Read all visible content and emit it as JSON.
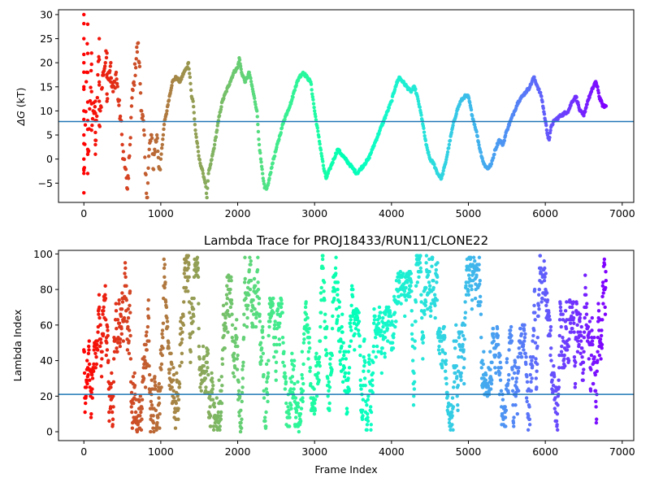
{
  "chart_data": [
    {
      "type": "scatter",
      "title": "",
      "xlabel": "",
      "ylabel": "ΔG (kT)",
      "ylabel_italic_part": "ΔG",
      "ylabel_rest": " (kT)",
      "xlim": [
        -330,
        7150
      ],
      "ylim": [
        -9,
        31
      ],
      "xticks": [
        0,
        1000,
        2000,
        3000,
        4000,
        5000,
        6000,
        7000
      ],
      "yticks": [
        -5,
        0,
        5,
        10,
        15,
        20,
        25,
        30
      ],
      "hline": 7.8,
      "hline_color": "#1f77b4",
      "colormap": "rainbow (red at frame 0 → violet at last frame)",
      "marker_color_start": "#ff0000",
      "marker_color_end": "#7f00ff",
      "grid": false,
      "legend": "none",
      "series_points": [
        [
          0,
          30
        ],
        [
          0,
          25
        ],
        [
          0,
          20
        ],
        [
          0,
          15
        ],
        [
          0,
          10
        ],
        [
          0,
          5
        ],
        [
          0,
          0
        ],
        [
          0,
          -2
        ],
        [
          0,
          -7
        ],
        [
          50,
          28
        ],
        [
          50,
          18
        ],
        [
          50,
          8
        ],
        [
          50,
          2
        ],
        [
          50,
          -3
        ],
        [
          100,
          22
        ],
        [
          100,
          14
        ],
        [
          100,
          6
        ],
        [
          120,
          10
        ],
        [
          150,
          12
        ],
        [
          150,
          8
        ],
        [
          150,
          3
        ],
        [
          150,
          1
        ],
        [
          200,
          25
        ],
        [
          200,
          16
        ],
        [
          200,
          12
        ],
        [
          200,
          7
        ],
        [
          220,
          11
        ],
        [
          250,
          18
        ],
        [
          280,
          20
        ],
        [
          300,
          22
        ],
        [
          300,
          17
        ],
        [
          300,
          12
        ],
        [
          320,
          18
        ],
        [
          350,
          20
        ],
        [
          350,
          16
        ],
        [
          380,
          14
        ],
        [
          400,
          16
        ],
        [
          420,
          18
        ],
        [
          450,
          12
        ],
        [
          480,
          8
        ],
        [
          500,
          3
        ],
        [
          520,
          0
        ],
        [
          540,
          -2
        ],
        [
          560,
          -6
        ],
        [
          580,
          -4
        ],
        [
          600,
          3
        ],
        [
          620,
          11
        ],
        [
          650,
          16
        ],
        [
          700,
          24
        ],
        [
          720,
          20
        ],
        [
          750,
          10
        ],
        [
          780,
          6
        ],
        [
          800,
          -3
        ],
        [
          820,
          -8
        ],
        [
          850,
          2
        ],
        [
          880,
          5
        ],
        [
          900,
          -2
        ],
        [
          920,
          2
        ],
        [
          950,
          5
        ],
        [
          980,
          -2
        ],
        [
          1000,
          0
        ],
        [
          1020,
          3
        ],
        [
          1050,
          8
        ],
        [
          1080,
          10
        ],
        [
          1100,
          12
        ],
        [
          1150,
          16
        ],
        [
          1200,
          17
        ],
        [
          1250,
          16
        ],
        [
          1300,
          18
        ],
        [
          1340,
          19
        ],
        [
          1360,
          20
        ],
        [
          1380,
          17
        ],
        [
          1400,
          13
        ],
        [
          1420,
          12
        ],
        [
          1450,
          6
        ],
        [
          1500,
          0
        ],
        [
          1550,
          -3
        ],
        [
          1580,
          -5
        ],
        [
          1600,
          -8
        ],
        [
          1620,
          -3
        ],
        [
          1650,
          -1
        ],
        [
          1700,
          3
        ],
        [
          1750,
          8
        ],
        [
          1800,
          12
        ],
        [
          1850,
          14
        ],
        [
          1900,
          16
        ],
        [
          1950,
          18
        ],
        [
          2000,
          19
        ],
        [
          2020,
          21
        ],
        [
          2050,
          18
        ],
        [
          2100,
          16
        ],
        [
          2150,
          18
        ],
        [
          2200,
          14
        ],
        [
          2250,
          10
        ],
        [
          2280,
          3
        ],
        [
          2300,
          0
        ],
        [
          2330,
          -4
        ],
        [
          2350,
          -6
        ],
        [
          2380,
          -6
        ],
        [
          2400,
          -5
        ],
        [
          2450,
          -1
        ],
        [
          2500,
          2
        ],
        [
          2550,
          5
        ],
        [
          2600,
          8
        ],
        [
          2650,
          10
        ],
        [
          2700,
          12
        ],
        [
          2750,
          15
        ],
        [
          2800,
          17
        ],
        [
          2850,
          18
        ],
        [
          2900,
          17
        ],
        [
          2950,
          16
        ],
        [
          3000,
          10
        ],
        [
          3050,
          5
        ],
        [
          3100,
          0
        ],
        [
          3120,
          -2
        ],
        [
          3150,
          -4
        ],
        [
          3200,
          -2
        ],
        [
          3250,
          0
        ],
        [
          3300,
          2
        ],
        [
          3350,
          1
        ],
        [
          3400,
          0
        ],
        [
          3450,
          -1
        ],
        [
          3500,
          -2
        ],
        [
          3550,
          -3
        ],
        [
          3600,
          -2
        ],
        [
          3650,
          -1
        ],
        [
          3700,
          0
        ],
        [
          3750,
          2
        ],
        [
          3800,
          4
        ],
        [
          3850,
          6
        ],
        [
          3900,
          8
        ],
        [
          3950,
          10
        ],
        [
          4000,
          12
        ],
        [
          4050,
          15
        ],
        [
          4100,
          17
        ],
        [
          4150,
          16
        ],
        [
          4200,
          15
        ],
        [
          4250,
          14
        ],
        [
          4300,
          15
        ],
        [
          4350,
          12
        ],
        [
          4400,
          8
        ],
        [
          4450,
          3
        ],
        [
          4500,
          0
        ],
        [
          4550,
          -1
        ],
        [
          4600,
          -3
        ],
        [
          4650,
          -4
        ],
        [
          4700,
          -1
        ],
        [
          4750,
          3
        ],
        [
          4800,
          7
        ],
        [
          4850,
          10
        ],
        [
          4900,
          12
        ],
        [
          4950,
          13
        ],
        [
          5000,
          13
        ],
        [
          5050,
          9
        ],
        [
          5100,
          6
        ],
        [
          5150,
          2
        ],
        [
          5200,
          -1
        ],
        [
          5250,
          -2
        ],
        [
          5300,
          -1
        ],
        [
          5350,
          2
        ],
        [
          5400,
          4
        ],
        [
          5450,
          3
        ],
        [
          5500,
          6
        ],
        [
          5550,
          8
        ],
        [
          5600,
          10
        ],
        [
          5650,
          12
        ],
        [
          5700,
          13
        ],
        [
          5750,
          14
        ],
        [
          5800,
          15
        ],
        [
          5850,
          17
        ],
        [
          5900,
          15
        ],
        [
          5950,
          13
        ],
        [
          6000,
          8
        ],
        [
          6030,
          5
        ],
        [
          6050,
          4
        ],
        [
          6080,
          7
        ],
        [
          6120,
          8
        ],
        [
          6200,
          9
        ],
        [
          6300,
          10
        ],
        [
          6350,
          12
        ],
        [
          6400,
          13
        ],
        [
          6450,
          10
        ],
        [
          6500,
          9
        ],
        [
          6550,
          12
        ],
        [
          6600,
          14
        ],
        [
          6650,
          16
        ],
        [
          6680,
          15
        ],
        [
          6700,
          13
        ],
        [
          6750,
          11
        ],
        [
          6790,
          11
        ]
      ]
    },
    {
      "type": "scatter",
      "title": "Lambda Trace for PROJ18433/RUN11/CLONE22",
      "xlabel": "Frame Index",
      "ylabel": "Lambda Index",
      "xlim": [
        -330,
        7150
      ],
      "ylim": [
        -5,
        102
      ],
      "xticks": [
        0,
        1000,
        2000,
        3000,
        4000,
        5000,
        6000,
        7000
      ],
      "yticks": [
        0,
        20,
        40,
        60,
        80,
        100
      ],
      "hline": 21,
      "hline_color": "#1f77b4",
      "colormap": "rainbow (red at frame 0 → violet at last frame)",
      "marker_color_start": "#ff0000",
      "marker_color_end": "#7f00ff",
      "grid": false,
      "legend": "none",
      "frames": 6790,
      "lambda_range": [
        0,
        99
      ]
    }
  ]
}
